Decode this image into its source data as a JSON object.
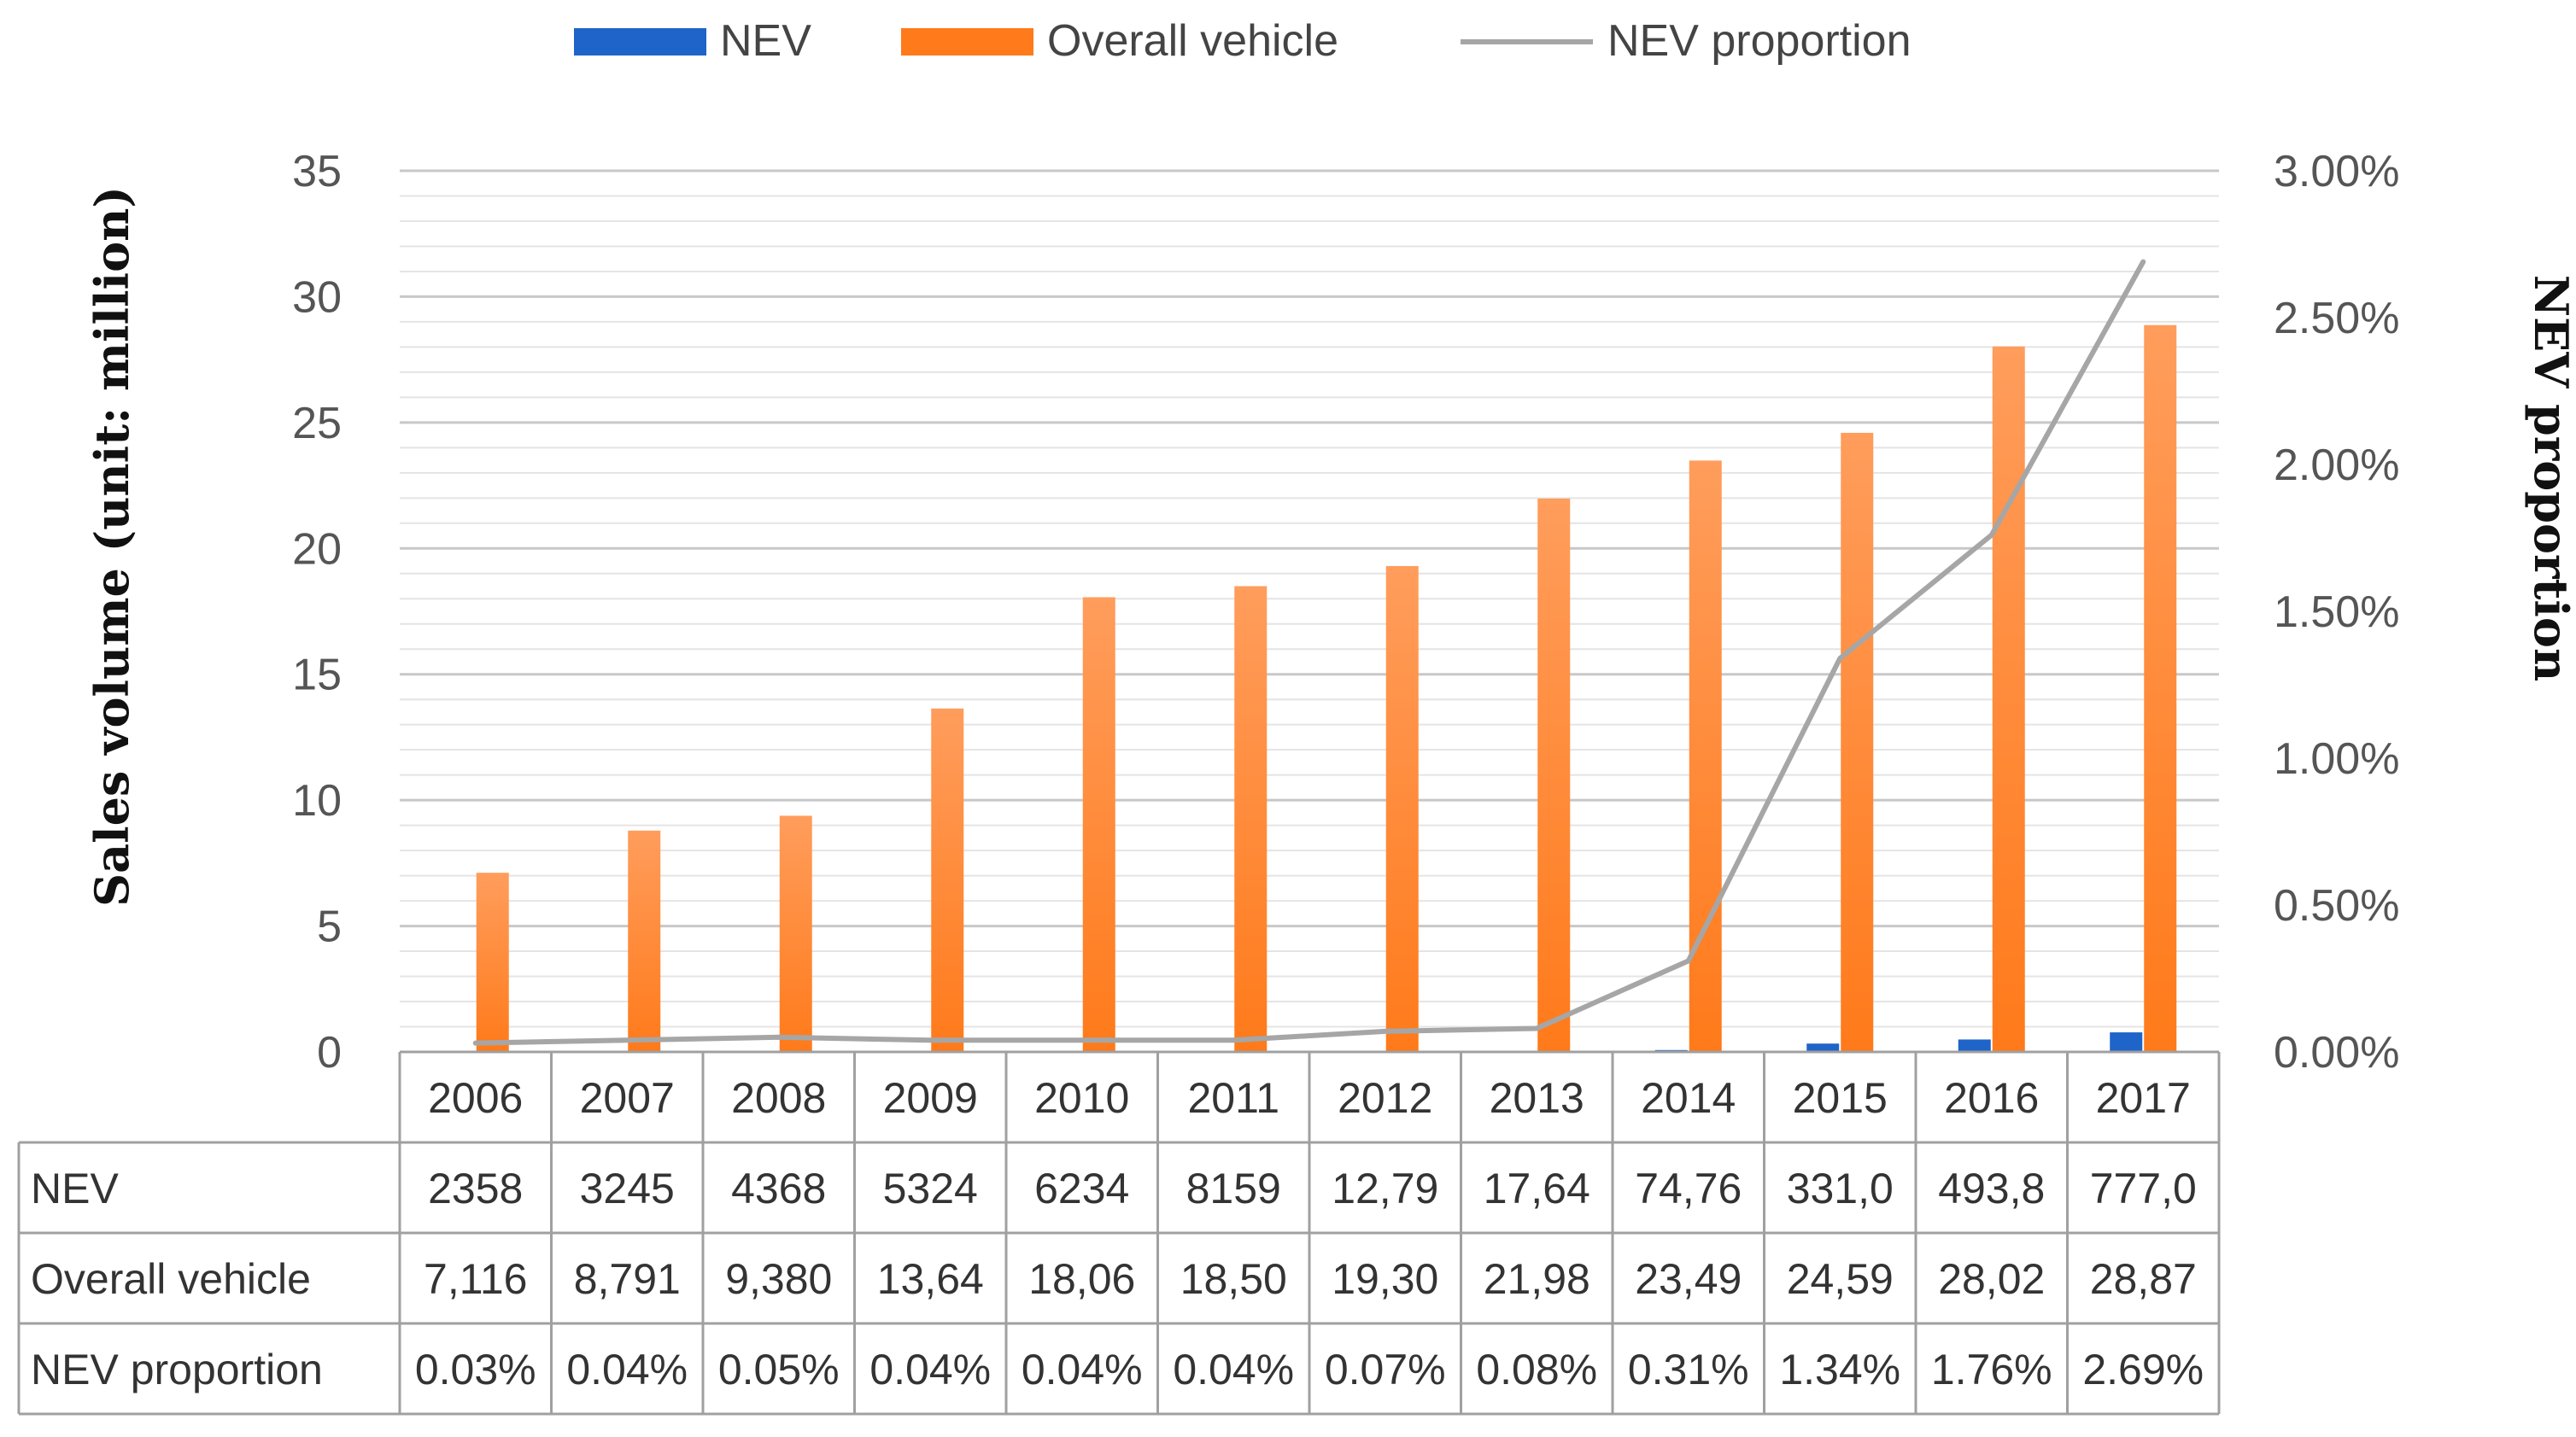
{
  "colors": {
    "nev": "#1f64c8",
    "overall": "#ff7a1a",
    "overall_top": "#ff9d5c",
    "proportion": "#a6a6a6",
    "grid_major": "#c8c8c8",
    "grid_minor": "#e4e4e4",
    "table_border": "#a0a0a0"
  },
  "chart_data": {
    "type": "bar",
    "categories": [
      "2006",
      "2007",
      "2008",
      "2009",
      "2010",
      "2011",
      "2012",
      "2013",
      "2014",
      "2015",
      "2016",
      "2017"
    ],
    "series": [
      {
        "name": "NEV",
        "axis": "left",
        "chart_type": "bar",
        "values": [
          0.002358,
          0.003245,
          0.004368,
          0.005324,
          0.006234,
          0.008159,
          0.01279,
          0.01764,
          0.07476,
          0.331,
          0.4938,
          0.777
        ]
      },
      {
        "name": "Overall vehicle",
        "axis": "left",
        "chart_type": "bar",
        "values": [
          7.116,
          8.791,
          9.38,
          13.64,
          18.06,
          18.5,
          19.3,
          21.98,
          23.49,
          24.59,
          28.02,
          28.87
        ]
      },
      {
        "name": "NEV proportion",
        "axis": "right",
        "chart_type": "line",
        "values": [
          0.03,
          0.04,
          0.05,
          0.04,
          0.04,
          0.04,
          0.07,
          0.08,
          0.31,
          1.34,
          1.76,
          2.69
        ]
      }
    ],
    "ylabel": "Sales volume (unit: million)",
    "ylim": [
      0,
      35
    ],
    "yticks": [
      "0",
      "5",
      "10",
      "15",
      "20",
      "25",
      "30",
      "35"
    ],
    "y2label": "NEV proportion",
    "y2lim": [
      0,
      3
    ],
    "y2ticks": [
      "0.00%",
      "0.50%",
      "1.00%",
      "1.50%",
      "2.00%",
      "2.50%",
      "3.00%"
    ],
    "legend_position": "top-center",
    "grid": true,
    "table": {
      "rows": [
        {
          "label": "NEV",
          "cells": [
            "2358",
            "3245",
            "4368",
            "5324",
            "6234",
            "8159",
            "12,79",
            "17,64",
            "74,76",
            "331,0",
            "493,8",
            "777,0"
          ]
        },
        {
          "label": "Overall vehicle",
          "cells": [
            "7,116",
            "8,791",
            "9,380",
            "13,64",
            "18,06",
            "18,50",
            "19,30",
            "21,98",
            "23,49",
            "24,59",
            "28,02",
            "28,87"
          ]
        },
        {
          "label": "NEV proportion",
          "cells": [
            "0.03%",
            "0.04%",
            "0.05%",
            "0.04%",
            "0.04%",
            "0.04%",
            "0.07%",
            "0.08%",
            "0.31%",
            "1.34%",
            "1.76%",
            "2.69%"
          ]
        }
      ]
    }
  }
}
